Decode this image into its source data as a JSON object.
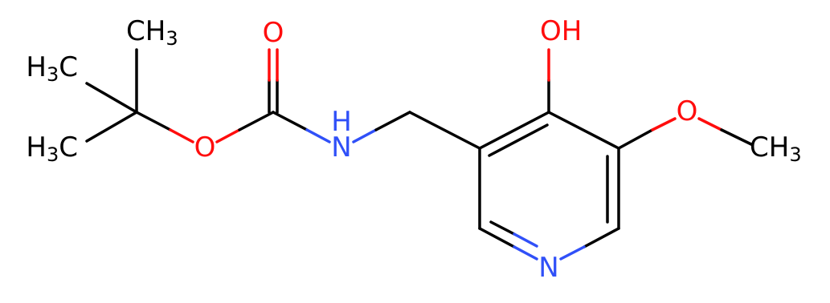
{
  "atoms": [
    {
      "parts": [
        {
          "text": "CH"
        },
        {
          "text": "3",
          "sub": true
        }
      ],
      "color": "#000000"
    },
    {
      "parts": [
        {
          "text": "H"
        },
        {
          "text": "3",
          "sub": true
        },
        {
          "text": "C"
        }
      ],
      "color": "#000000"
    },
    {
      "parts": [
        {
          "text": "H"
        },
        {
          "text": "3",
          "sub": true
        },
        {
          "text": "C"
        }
      ],
      "color": "#000000"
    },
    {
      "parts": [
        {
          "text": "O"
        }
      ],
      "color": "#ff0d0d"
    },
    {
      "parts": [
        {
          "text": "O"
        }
      ],
      "color": "#ff0d0d"
    },
    {
      "parts": [
        {
          "text": "N"
        }
      ],
      "color": "#3050f8"
    },
    {
      "parts": [
        {
          "text": "H"
        }
      ],
      "color": "#3050f8"
    },
    {
      "parts": [
        {
          "text": "OH"
        }
      ],
      "color": "#ff0d0d"
    },
    {
      "parts": [
        {
          "text": "O"
        }
      ],
      "color": "#ff0d0d"
    },
    {
      "parts": [
        {
          "text": "CH"
        },
        {
          "text": "3",
          "sub": true
        }
      ],
      "color": "#000000"
    },
    {
      "parts": [
        {
          "text": "N"
        }
      ],
      "color": "#3050f8"
    }
  ]
}
